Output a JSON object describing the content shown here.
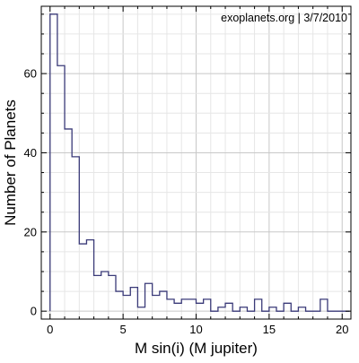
{
  "chart_data": {
    "type": "bar",
    "style": "step-histogram",
    "annotation": "exoplanets.org | 3/7/2010",
    "xlabel": "M sin(i) (M jupiter)",
    "ylabel": "Number of Planets",
    "xlim": [
      -0.6,
      20.6
    ],
    "ylim": [
      -2,
      77
    ],
    "xticks": [
      0,
      5,
      10,
      15,
      20
    ],
    "yticks": [
      0,
      20,
      40,
      60
    ],
    "grid": true,
    "bin_width": 0.5,
    "bin_edges_start": 0,
    "values": [
      75,
      62,
      46,
      39,
      17,
      18,
      9,
      10,
      9,
      5,
      4,
      6,
      1,
      7,
      4,
      5,
      3,
      2,
      3,
      3,
      2,
      3,
      0,
      1,
      2,
      0,
      1,
      0,
      3,
      0,
      1,
      0,
      2,
      0,
      1,
      0,
      0,
      3,
      0,
      0,
      0
    ],
    "colors": {
      "line": "#3a3a78",
      "grid_major": "#c8c8c8",
      "grid_minor": "#e6e6e6",
      "frame": "#000000",
      "text": "#000000"
    }
  }
}
